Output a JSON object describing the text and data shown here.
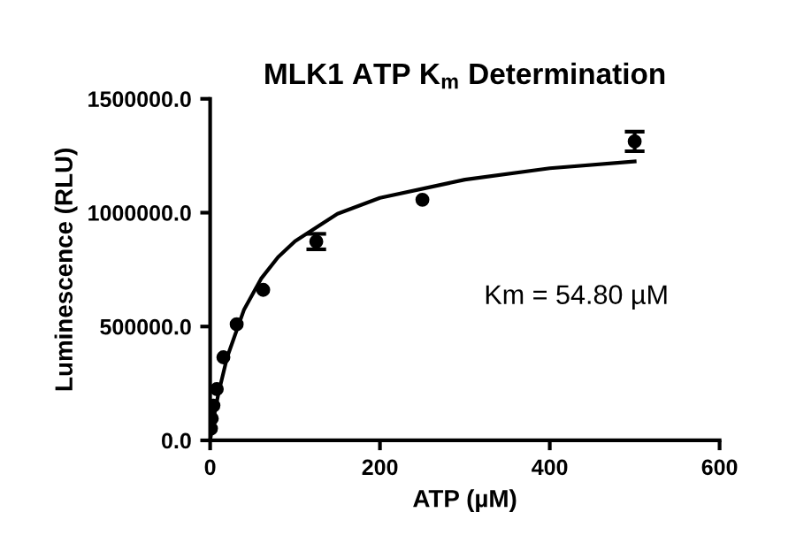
{
  "chart_data": {
    "type": "scatter",
    "title": "MLK1 ATP K$_{m}$ Determination",
    "xlabel": "ATP (µM)",
    "ylabel": "Luminescence (RLU)",
    "annotations": [
      "Km = 54.80 µM"
    ],
    "series": [
      {
        "color": "#000000",
        "marker": "circle",
        "x": [
          0.98,
          1.95,
          3.9,
          7.8,
          15.6,
          31.25,
          62.5,
          125,
          250,
          500
        ],
        "values": [
          52000,
          96000,
          153000,
          225000,
          365000,
          510000,
          661000,
          873000,
          1057000,
          1313000
        ],
        "errors": [
          null,
          null,
          null,
          null,
          null,
          null,
          null,
          34000,
          null,
          43000
        ]
      },
      {
        "type": "line",
        "color": "#000000",
        "line_style": "solid",
        "x": [
          0,
          5,
          10,
          20,
          40,
          60,
          80,
          100,
          150,
          200,
          300,
          400,
          500
        ],
        "values": [
          0,
          115000,
          210000,
          365000,
          575000,
          710000,
          805000,
          875000,
          995000,
          1065000,
          1145000,
          1195000,
          1225000
        ]
      }
    ],
    "xlim": [
      0,
      600
    ],
    "xticks": [
      0,
      200,
      400,
      600
    ],
    "ylim": [
      0,
      1500000
    ],
    "yticks": [
      {
        "value": 0,
        "label": "0.0"
      },
      {
        "value": 500000,
        "label": "500000.0"
      },
      {
        "value": 1000000,
        "label": "1000000.0"
      },
      {
        "value": 1500000,
        "label": "1500000.0"
      }
    ],
    "grid": false,
    "legend": false
  }
}
